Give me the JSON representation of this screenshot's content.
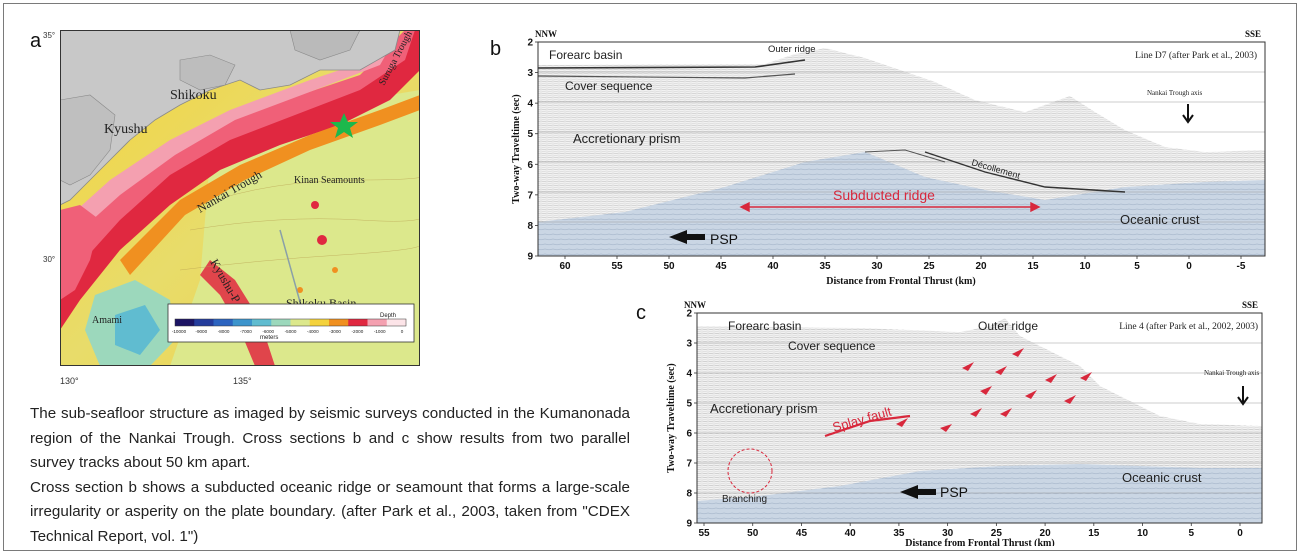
{
  "panel_a": {
    "letter": "a",
    "lat_labels": [
      "35°",
      "30°"
    ],
    "lon_labels": [
      "130°",
      "135°"
    ],
    "place_labels": {
      "shikoku": "Shikoku",
      "kyushu": "Kyushu",
      "nankai_trough": "Nankai Trough",
      "kinan_seamounts": "Kinan Seamounts",
      "suruga_trough": "Suruga Trough",
      "kyushu_palau": "Kyushu-P",
      "shikoku_basin": "Shikoku Basin",
      "amami": "Amami"
    },
    "colorbar": {
      "title": "Depth",
      "unit": "meters",
      "ticks": [
        "-10000",
        "-9000",
        "-8000",
        "-7000",
        "-6000",
        "-5000",
        "-4000",
        "-3000",
        "-2000",
        "-1000",
        "0"
      ],
      "colors": [
        "#1c1464",
        "#243c9c",
        "#2c64c0",
        "#3c94cc",
        "#60bcd0",
        "#9cd8bc",
        "#dce88c",
        "#f4d23c",
        "#f09020",
        "#e02840",
        "#f4a0b0",
        "#fce4e8"
      ]
    },
    "marker_color": "#1cb84c"
  },
  "panel_b": {
    "letter": "b",
    "dir_left": "NNW",
    "dir_right": "SSE",
    "source": "Line D7 (after Park et al., 2003)",
    "ylabel": "Two-way Traveltime (sec)",
    "xlabel": "Distance from Frontal Thrust (km)",
    "y_ticks": [
      "2",
      "3",
      "4",
      "5",
      "6",
      "7",
      "8",
      "9"
    ],
    "x_ticks": [
      "60",
      "55",
      "50",
      "45",
      "40",
      "35",
      "30",
      "25",
      "20",
      "15",
      "10",
      "5",
      "0",
      "-5"
    ],
    "labels": {
      "forearc": "Forearc basin",
      "outer_ridge": "Outer ridge",
      "cover": "Cover sequence",
      "trough_axis": "Nankai Trough axis",
      "prism": "Accretionary prism",
      "decollement": "Décollement",
      "subducted": "Subducted ridge",
      "psp": "PSP",
      "oceanic": "Oceanic crust"
    }
  },
  "panel_c": {
    "letter": "c",
    "dir_left": "NNW",
    "dir_right": "SSE",
    "source": "Line 4 (after Park et al., 2002, 2003)",
    "ylabel": "Two-way Traveltime (sec)",
    "xlabel": "Distance from Frontal Thrust (km)",
    "y_ticks": [
      "2",
      "3",
      "4",
      "5",
      "6",
      "7",
      "8",
      "9"
    ],
    "x_ticks": [
      "55",
      "50",
      "45",
      "40",
      "35",
      "30",
      "25",
      "20",
      "15",
      "10",
      "5",
      "0"
    ],
    "labels": {
      "forearc": "Forearc basin",
      "outer_ridge": "Outer ridge",
      "cover": "Cover sequence",
      "trough_axis": "Nankai Trough axis",
      "prism": "Accretionary prism",
      "splay": "Splay fault",
      "branching": "Branching",
      "psp": "PSP",
      "oceanic": "Oceanic crust"
    }
  },
  "caption": {
    "p1": "The sub-seafloor structure as imaged by seismic surveys conducted in the Kumanonada region of the Nankai Trough. Cross sections b and c show results from two parallel survey tracks about 50 km apart.",
    "p2": "Cross section b shows a subducted oceanic ridge or seamount that forms a large-scale irregularity or asperity on the plate boundary. (after Park et al., 2003, taken from \"CDEX Technical Report, vol. 1\")"
  }
}
